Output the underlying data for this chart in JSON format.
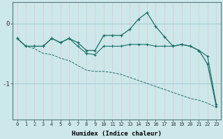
{
  "xlabel": "Humidex (Indice chaleur)",
  "bg_color": "#cce8eb",
  "vgrid_color": "#e8c8c8",
  "hgrid_color": "#aacdd2",
  "line_color": "#1a6e65",
  "xlim": [
    -0.5,
    23.5
  ],
  "ylim": [
    -1.6,
    0.35
  ],
  "yticks": [
    0,
    -1
  ],
  "xticks": [
    0,
    1,
    2,
    3,
    4,
    5,
    6,
    7,
    8,
    9,
    10,
    11,
    12,
    13,
    14,
    15,
    16,
    17,
    18,
    19,
    20,
    21,
    22,
    23
  ],
  "line1_x": [
    0,
    1,
    2,
    3,
    4,
    5,
    6,
    7,
    8,
    9,
    10,
    11,
    12,
    13,
    14,
    15,
    16,
    17,
    18,
    19,
    20,
    21,
    22,
    23
  ],
  "line1_y": [
    -0.25,
    -0.38,
    -0.38,
    -0.38,
    -0.25,
    -0.32,
    -0.25,
    -0.32,
    -0.45,
    -0.45,
    -0.2,
    -0.2,
    -0.2,
    -0.1,
    0.07,
    0.18,
    -0.05,
    -0.22,
    -0.38,
    -0.35,
    -0.38,
    -0.45,
    -0.68,
    -1.38
  ],
  "line2_x": [
    0,
    1,
    2,
    3,
    4,
    5,
    6,
    7,
    8,
    9,
    10,
    11,
    12,
    13,
    14,
    15,
    16,
    17,
    18,
    19,
    20,
    21,
    22,
    23
  ],
  "line2_y": [
    -0.25,
    -0.38,
    -0.38,
    -0.38,
    -0.25,
    -0.32,
    -0.25,
    -0.38,
    -0.5,
    -0.52,
    -0.38,
    -0.38,
    -0.38,
    -0.35,
    -0.35,
    -0.35,
    -0.38,
    -0.38,
    -0.38,
    -0.35,
    -0.38,
    -0.45,
    -0.55,
    -1.35
  ],
  "line3_x": [
    0,
    1,
    2,
    3,
    4,
    5,
    6,
    7,
    8,
    9,
    10,
    11,
    12,
    13,
    14,
    15,
    16,
    17,
    18,
    19,
    20,
    21,
    22,
    23
  ],
  "line3_y": [
    -0.25,
    -0.38,
    -0.42,
    -0.5,
    -0.52,
    -0.58,
    -0.62,
    -0.7,
    -0.78,
    -0.8,
    -0.8,
    -0.82,
    -0.85,
    -0.9,
    -0.95,
    -1.0,
    -1.05,
    -1.1,
    -1.15,
    -1.2,
    -1.25,
    -1.28,
    -1.33,
    -1.4
  ]
}
